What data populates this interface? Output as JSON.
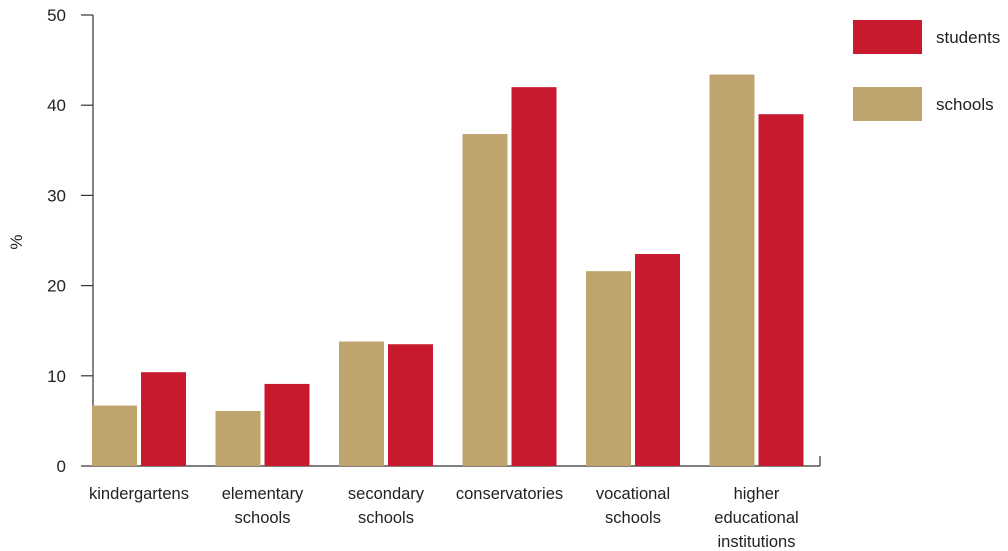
{
  "chart_data": {
    "type": "bar",
    "title": "",
    "xlabel": "",
    "ylabel": "%",
    "ylim": [
      0,
      50
    ],
    "yticks": [
      0,
      10,
      20,
      30,
      40,
      50
    ],
    "grid": false,
    "legend_position": "top-right",
    "categories": [
      [
        "kindergartens"
      ],
      [
        "elementary",
        "schools"
      ],
      [
        "secondary",
        "schools"
      ],
      [
        "conservatories"
      ],
      [
        "vocational",
        "schools"
      ],
      [
        "higher",
        "educational",
        "institutions"
      ]
    ],
    "series": [
      {
        "name": "schools",
        "color": "#bfa46e",
        "values": [
          6.7,
          6.1,
          13.8,
          36.8,
          21.6,
          43.4
        ]
      },
      {
        "name": "students",
        "color": "#c8192f",
        "values": [
          10.4,
          9.1,
          13.5,
          42.0,
          23.5,
          39.0
        ]
      }
    ],
    "legend": [
      {
        "label": "students",
        "color": "#c8192f"
      },
      {
        "label": "schools",
        "color": "#bfa46e"
      }
    ]
  }
}
